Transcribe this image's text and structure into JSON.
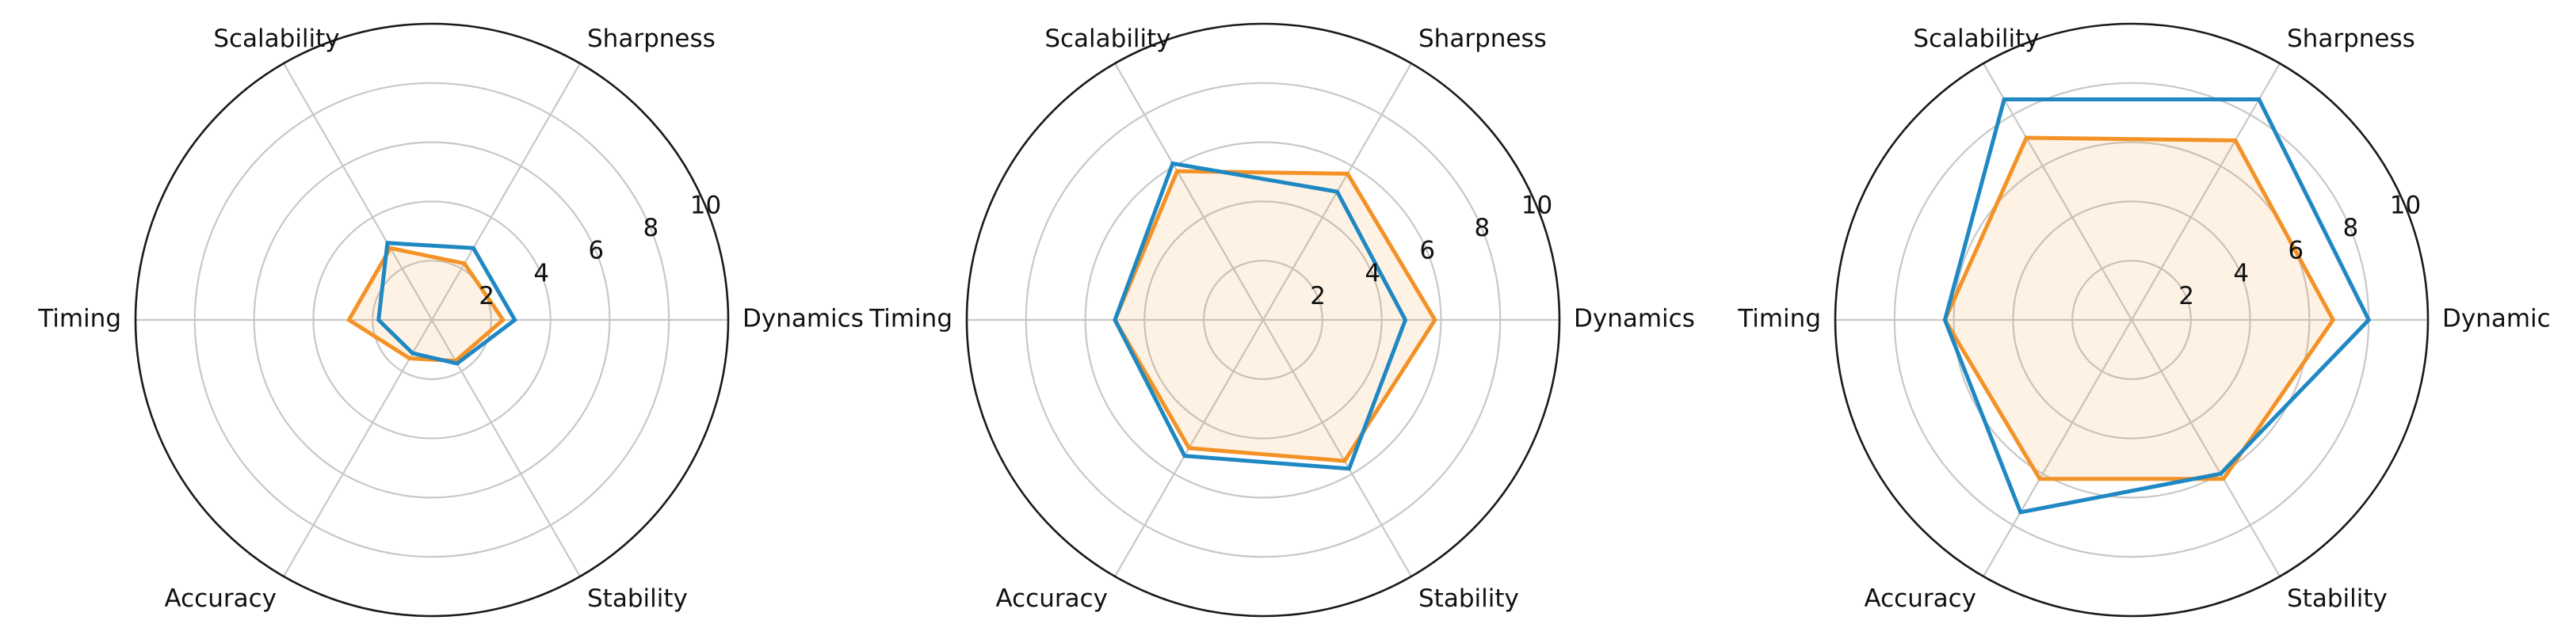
{
  "chart_data": [
    {
      "type": "radar",
      "categories": [
        "Dynamics",
        "Sharpness",
        "Scalability",
        "Timing",
        "Accuracy",
        "Stability"
      ],
      "rlim": [
        0,
        10
      ],
      "rticks": [
        "2",
        "4",
        "6",
        "8",
        "10"
      ],
      "grid": true,
      "series": [
        {
          "values": [
            2.8,
            2.8,
            3.0,
            1.8,
            1.3,
            1.7
          ],
          "color": "#1f88c2",
          "fill": false
        },
        {
          "values": [
            2.4,
            2.2,
            2.8,
            2.8,
            1.5,
            1.6
          ],
          "color": "#f39226",
          "fill": true
        }
      ]
    },
    {
      "type": "radar",
      "categories": [
        "Dynamics",
        "Sharpness",
        "Scalability",
        "Timing",
        "Accuracy",
        "Stability"
      ],
      "rlim": [
        0,
        10
      ],
      "rticks": [
        "2",
        "4",
        "6",
        "8",
        "10"
      ],
      "grid": true,
      "series": [
        {
          "values": [
            4.8,
            5.0,
            6.1,
            5.0,
            5.3,
            5.8
          ],
          "color": "#1f88c2",
          "fill": false
        },
        {
          "values": [
            5.8,
            5.7,
            5.8,
            5.0,
            5.0,
            5.5
          ],
          "color": "#f39226",
          "fill": true
        }
      ]
    },
    {
      "type": "radar",
      "categories": [
        "Dynamics",
        "Sharpness",
        "Scalability",
        "Timing",
        "Accuracy",
        "Stability"
      ],
      "rlim": [
        0,
        10
      ],
      "rticks": [
        "2",
        "4",
        "6",
        "8",
        "10"
      ],
      "grid": true,
      "series": [
        {
          "values": [
            8.0,
            8.6,
            8.6,
            6.3,
            7.5,
            6.0
          ],
          "color": "#1f88c2",
          "fill": false
        },
        {
          "values": [
            6.8,
            7.0,
            7.1,
            6.3,
            6.2,
            6.2
          ],
          "color": "#f39226",
          "fill": true
        }
      ]
    }
  ]
}
